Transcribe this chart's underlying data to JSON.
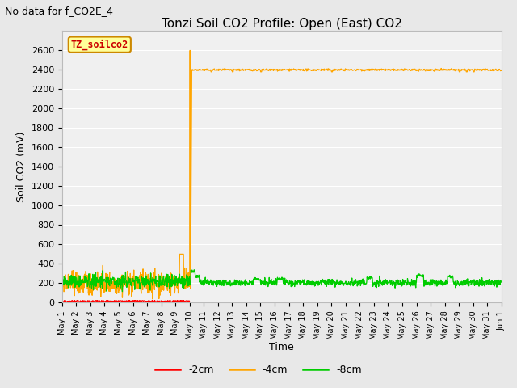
{
  "title": "Tonzi Soil CO2 Profile: Open (East) CO2",
  "subtitle": "No data for f_CO2E_4",
  "ylabel": "Soil CO2 (mV)",
  "xlabel": "Time",
  "ylim": [
    0,
    2800
  ],
  "yticks": [
    0,
    200,
    400,
    600,
    800,
    1000,
    1200,
    1400,
    1600,
    1800,
    2000,
    2200,
    2400,
    2600
  ],
  "legend_labels": [
    "-2cm",
    "-4cm",
    "-8cm"
  ],
  "legend_colors": [
    "#ff0000",
    "#ffa500",
    "#00cc00"
  ],
  "line_label": "TZ_soilco2",
  "line_label_color": "#cc0000",
  "line_label_bg": "#ffff99",
  "bg_color": "#e8e8e8",
  "plot_bg": "#f0f0f0",
  "title_fontsize": 11,
  "subtitle_fontsize": 9,
  "axis_fontsize": 9,
  "tick_fontsize": 8,
  "xtick_fontsize": 7,
  "legend_fontsize": 9
}
